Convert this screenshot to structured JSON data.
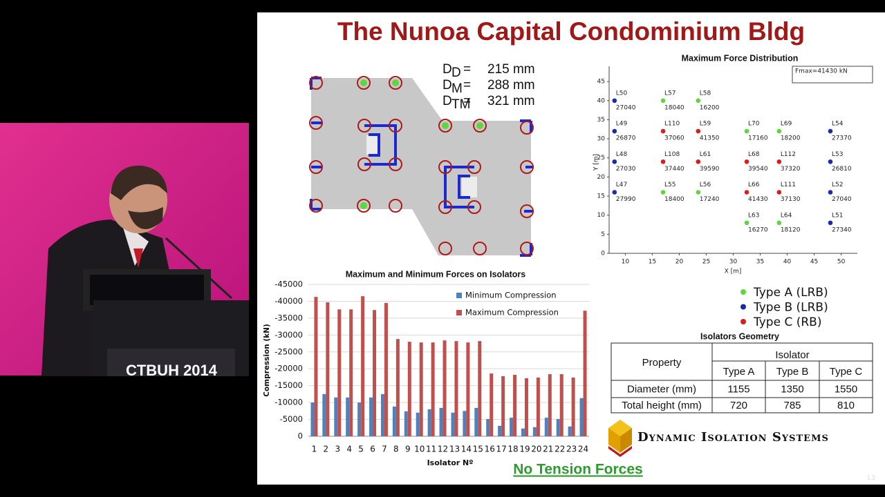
{
  "video": {
    "banner": "CTBUH 2014"
  },
  "slide": {
    "title": "The Nunoa Capital Condominium Bldg",
    "design": [
      {
        "symbol": "D",
        "sub": "D",
        "sign": "=",
        "value": "215 mm"
      },
      {
        "symbol": "D",
        "sub": "M",
        "sign": "=",
        "value": "288 mm"
      },
      {
        "symbol": "D",
        "sub": "TM",
        "sign": "=",
        "value": "321 mm"
      }
    ],
    "table": {
      "title": "Isolators Geometry",
      "header": [
        "Property",
        "Isolator"
      ],
      "subheader": [
        "Type A",
        "Type B",
        "Type C"
      ],
      "rows": [
        [
          "Diameter (mm)",
          "1155",
          "1350",
          "1550"
        ],
        [
          "Total height (mm)",
          "720",
          "785",
          "810"
        ]
      ]
    },
    "logo": "Dynamic Isolation Systems",
    "footer": "No Tension Forces",
    "page": "13"
  },
  "chart_data": [
    {
      "type": "scatter",
      "title": "Maximum Force Distribution",
      "annotation": "Fmax=41430 kN",
      "xlabel": "X [m]",
      "ylabel": "Y [m]",
      "xlim": [
        7,
        53
      ],
      "ylim": [
        0,
        49
      ],
      "xticks": [
        10,
        15,
        20,
        25,
        30,
        35,
        40,
        45,
        50
      ],
      "yticks": [
        0,
        5,
        10,
        15,
        20,
        25,
        30,
        35,
        40,
        45
      ],
      "series": [
        {
          "name": "Type A (LRB)",
          "color": "#5ed63c",
          "labels": [
            "L57",
            "L58",
            "L70",
            "L69",
            "L55",
            "L56",
            "L63",
            "L64"
          ],
          "x": [
            17,
            23.5,
            32.5,
            38.5,
            17,
            23.5,
            32.5,
            38.5
          ],
          "y": [
            40,
            40,
            32,
            32,
            16,
            16,
            8,
            8
          ],
          "values": [
            18040,
            16200,
            17160,
            18200,
            18400,
            17240,
            16270,
            18120
          ]
        },
        {
          "name": "Type B (LRB)",
          "color": "#1a2aa8",
          "labels": [
            "L50",
            "L49",
            "L54",
            "L48",
            "L53",
            "L47",
            "L52",
            "L51"
          ],
          "x": [
            8,
            8,
            48,
            8,
            48,
            8,
            48,
            48
          ],
          "y": [
            40,
            32,
            32,
            24,
            24,
            16,
            16,
            8
          ],
          "values": [
            27040,
            26870,
            27370,
            27030,
            26810,
            27990,
            27040,
            27340
          ]
        },
        {
          "name": "Type C (RB)",
          "color": "#d81e1e",
          "labels": [
            "L110",
            "L59",
            "L108",
            "L61",
            "L68",
            "L112",
            "L66",
            "L111"
          ],
          "x": [
            17,
            23.5,
            17,
            23.5,
            32.5,
            38.5,
            32.5,
            38.5
          ],
          "y": [
            32,
            32,
            24,
            24,
            24,
            24,
            16,
            16
          ],
          "values": [
            37060,
            41350,
            37440,
            39590,
            39540,
            37320,
            41430,
            37130
          ]
        }
      ]
    },
    {
      "type": "bar",
      "title": "Maximum and Minimum Forces on Isolators",
      "xlabel": "Isolator Nº",
      "ylabel": "Compression (kN)",
      "categories": [
        1,
        2,
        3,
        4,
        5,
        6,
        7,
        8,
        9,
        10,
        11,
        12,
        13,
        14,
        15,
        16,
        17,
        18,
        19,
        20,
        21,
        22,
        23,
        24
      ],
      "ylim": [
        0,
        -45000
      ],
      "yticks": [
        0,
        -5000,
        -10000,
        -15000,
        -20000,
        -25000,
        -30000,
        -35000,
        -40000,
        -45000
      ],
      "series": [
        {
          "name": "Minimum Compression",
          "color": "#4f81bd",
          "values": [
            -10000,
            -12500,
            -11500,
            -11500,
            -10000,
            -11500,
            -12500,
            -8800,
            -7400,
            -7000,
            -8000,
            -8400,
            -7000,
            -7500,
            -8400,
            -5100,
            -3100,
            -5500,
            -2300,
            -2700,
            -5500,
            -5100,
            -2900,
            -11300
          ]
        },
        {
          "name": "Maximum Compression",
          "color": "#c0504d",
          "values": [
            -41300,
            -39700,
            -37600,
            -37600,
            -41500,
            -37400,
            -39500,
            -28800,
            -28000,
            -27800,
            -27800,
            -28400,
            -28200,
            -27800,
            -28200,
            -18600,
            -17800,
            -18200,
            -17200,
            -17400,
            -18400,
            -18400,
            -17400,
            -37200
          ]
        }
      ]
    }
  ]
}
